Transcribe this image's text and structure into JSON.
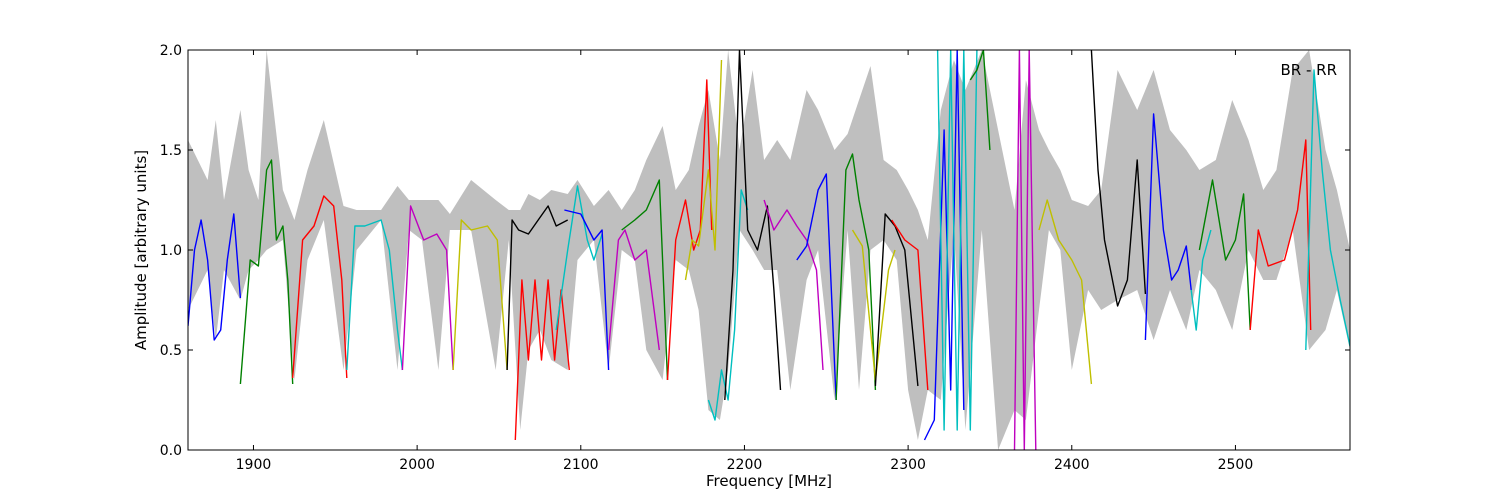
{
  "chart_data": {
    "type": "line",
    "title": "",
    "xlabel": "Frequency [MHz]",
    "ylabel": "Amplitude [arbitrary units]",
    "xlim": [
      1860,
      2570
    ],
    "ylim": [
      0.0,
      2.0
    ],
    "xticks": [
      1900,
      2000,
      2100,
      2200,
      2300,
      2400,
      2500
    ],
    "xtick_labels": [
      "1900",
      "2000",
      "2100",
      "2200",
      "2300",
      "2400",
      "2500"
    ],
    "yticks": [
      0.0,
      0.5,
      1.0,
      1.5,
      2.0
    ],
    "ytick_labels": [
      "0.0",
      "0.5",
      "1.0",
      "1.5",
      "2.0"
    ],
    "grid": false,
    "annotation": "BR - RR",
    "envelope_color": "#bfbfbf",
    "envelope": {
      "x": [
        1860,
        1872,
        1877,
        1882,
        1892,
        1897,
        1903,
        1908,
        1918,
        1925,
        1933,
        1943,
        1955,
        1963,
        1978,
        1988,
        1995,
        2003,
        2013,
        2020,
        2033,
        2048,
        2056,
        2063,
        2068,
        2075,
        2082,
        2092,
        2098,
        2108,
        2117,
        2125,
        2133,
        2140,
        2150,
        2158,
        2166,
        2172,
        2178,
        2185,
        2190,
        2197,
        2205,
        2212,
        2220,
        2228,
        2238,
        2245,
        2255,
        2263,
        2270,
        2277,
        2285,
        2293,
        2300,
        2306,
        2312,
        2320,
        2328,
        2335,
        2345,
        2355,
        2365,
        2372,
        2380,
        2386,
        2393,
        2400,
        2410,
        2418,
        2428,
        2440,
        2450,
        2460,
        2470,
        2478,
        2488,
        2498,
        2508,
        2517,
        2525,
        2535,
        2545,
        2555,
        2562,
        2570
      ],
      "upper": [
        1.55,
        1.35,
        1.65,
        1.25,
        1.7,
        1.4,
        1.25,
        2.0,
        1.3,
        1.15,
        1.4,
        1.65,
        1.22,
        1.2,
        1.2,
        1.32,
        1.25,
        1.25,
        1.25,
        1.18,
        1.35,
        1.25,
        1.2,
        1.2,
        1.28,
        1.25,
        1.3,
        1.28,
        1.35,
        1.22,
        1.3,
        1.2,
        1.3,
        1.45,
        1.62,
        1.3,
        1.4,
        1.62,
        1.8,
        1.45,
        2.0,
        1.5,
        1.9,
        1.45,
        1.55,
        1.45,
        1.8,
        1.7,
        1.5,
        1.58,
        1.75,
        1.92,
        1.45,
        1.4,
        1.3,
        1.2,
        1.05,
        1.7,
        1.95,
        1.8,
        2.0,
        1.6,
        1.2,
        1.85,
        1.6,
        1.5,
        1.4,
        1.25,
        1.22,
        1.3,
        1.9,
        1.7,
        1.9,
        1.6,
        1.5,
        1.4,
        1.45,
        1.75,
        1.55,
        1.3,
        1.4,
        1.9,
        2.0,
        1.5,
        1.3,
        1.0
      ],
      "lower": [
        0.7,
        0.9,
        0.55,
        0.9,
        0.75,
        0.9,
        0.95,
        1.0,
        1.05,
        0.35,
        0.95,
        1.15,
        0.4,
        1.0,
        1.15,
        0.4,
        1.1,
        1.05,
        0.4,
        1.1,
        1.1,
        0.4,
        1.05,
        0.1,
        0.5,
        0.6,
        0.45,
        0.4,
        0.95,
        1.05,
        0.4,
        1.0,
        0.95,
        0.5,
        0.35,
        0.95,
        0.9,
        0.7,
        0.2,
        0.15,
        0.4,
        1.1,
        1.0,
        0.9,
        0.9,
        0.3,
        0.85,
        1.0,
        0.25,
        1.1,
        0.3,
        1.0,
        1.05,
        0.95,
        0.3,
        0.05,
        0.3,
        0.25,
        1.1,
        0.1,
        1.1,
        0.0,
        0.2,
        0.15,
        0.7,
        1.1,
        1.0,
        0.4,
        0.8,
        0.7,
        0.75,
        0.8,
        0.55,
        0.8,
        0.6,
        0.9,
        0.8,
        0.6,
        1.0,
        0.85,
        0.85,
        1.1,
        0.5,
        0.6,
        0.8,
        0.5
      ]
    },
    "series": [
      {
        "color": "#0000ff",
        "x": [
          1860,
          1864,
          1868,
          1872,
          1876,
          1880,
          1884,
          1888,
          1892
        ],
        "y": [
          0.62,
          1.0,
          1.15,
          0.95,
          0.55,
          0.6,
          0.95,
          1.18,
          0.76
        ]
      },
      {
        "color": "#008000",
        "x": [
          1892,
          1898,
          1903,
          1908,
          1911,
          1914,
          1918,
          1921,
          1924
        ],
        "y": [
          0.33,
          0.95,
          0.92,
          1.4,
          1.45,
          1.05,
          1.12,
          0.85,
          0.33
        ]
      },
      {
        "color": "#ff0000",
        "x": [
          1924,
          1930,
          1937,
          1943,
          1949,
          1954,
          1957
        ],
        "y": [
          0.36,
          1.05,
          1.12,
          1.27,
          1.22,
          0.85,
          0.36
        ]
      },
      {
        "color": "#00bfbf",
        "x": [
          1957,
          1962,
          1968,
          1978,
          1983,
          1988,
          1991
        ],
        "y": [
          0.4,
          1.12,
          1.12,
          1.15,
          1.0,
          0.6,
          0.4
        ]
      },
      {
        "color": "#bf00bf",
        "x": [
          1991,
          1996,
          2004,
          2012,
          2018,
          2022
        ],
        "y": [
          0.4,
          1.22,
          1.05,
          1.08,
          1.0,
          0.4
        ]
      },
      {
        "color": "#bfbf00",
        "x": [
          2022,
          2027,
          2033,
          2043,
          2049,
          2055
        ],
        "y": [
          0.4,
          1.15,
          1.1,
          1.12,
          1.05,
          0.4
        ]
      },
      {
        "color": "#000000",
        "x": [
          2055,
          2058,
          2062,
          2068,
          2074,
          2080,
          2085,
          2092
        ],
        "y": [
          0.4,
          1.15,
          1.1,
          1.08,
          1.15,
          1.22,
          1.12,
          1.15
        ]
      },
      {
        "color": "#ff0000",
        "x": [
          2060,
          2064,
          2068,
          2072,
          2076,
          2080,
          2084,
          2088,
          2093
        ],
        "y": [
          0.05,
          0.85,
          0.45,
          0.85,
          0.45,
          0.85,
          0.45,
          0.8,
          0.4
        ]
      },
      {
        "color": "#00bfbf",
        "x": [
          2085,
          2092,
          2098,
          2104,
          2108,
          2113
        ],
        "y": [
          0.6,
          1.0,
          1.32,
          1.05,
          0.95,
          1.08
        ]
      },
      {
        "color": "#0000ff",
        "x": [
          2090,
          2100,
          2108,
          2113,
          2117
        ],
        "y": [
          1.2,
          1.18,
          1.05,
          1.1,
          0.4
        ]
      },
      {
        "color": "#bf00bf",
        "x": [
          2117,
          2123,
          2127,
          2133,
          2140,
          2148
        ],
        "y": [
          0.5,
          1.05,
          1.1,
          0.95,
          1.0,
          0.5
        ]
      },
      {
        "color": "#008000",
        "x": [
          2125,
          2133,
          2140,
          2148,
          2153
        ],
        "y": [
          1.1,
          1.15,
          1.2,
          1.35,
          0.35
        ]
      },
      {
        "color": "#ff0000",
        "x": [
          2153,
          2158,
          2164,
          2169,
          2173,
          2177,
          2180
        ],
        "y": [
          0.35,
          1.05,
          1.25,
          1.0,
          1.1,
          1.85,
          1.1
        ]
      },
      {
        "color": "#bfbf00",
        "x": [
          2164,
          2168,
          2172,
          2178,
          2182,
          2186
        ],
        "y": [
          0.85,
          1.05,
          1.02,
          1.4,
          1.0,
          1.95
        ]
      },
      {
        "color": "#00bfbf",
        "x": [
          2178,
          2182,
          2186,
          2190,
          2194,
          2198,
          2202
        ],
        "y": [
          0.25,
          0.15,
          0.4,
          0.25,
          0.6,
          1.3,
          1.2
        ]
      },
      {
        "color": "#000000",
        "x": [
          2188,
          2193,
          2197,
          2202,
          2208,
          2214,
          2218,
          2222
        ],
        "y": [
          0.25,
          0.9,
          2.0,
          1.1,
          1.0,
          1.22,
          0.8,
          0.3
        ]
      },
      {
        "color": "#bf00bf",
        "x": [
          2212,
          2218,
          2226,
          2232,
          2238,
          2244,
          2248
        ],
        "y": [
          1.25,
          1.1,
          1.2,
          1.12,
          1.05,
          0.9,
          0.4
        ]
      },
      {
        "color": "#0000ff",
        "x": [
          2232,
          2238,
          2245,
          2250,
          2256
        ],
        "y": [
          0.95,
          1.02,
          1.3,
          1.38,
          0.25
        ]
      },
      {
        "color": "#008000",
        "x": [
          2256,
          2262,
          2266,
          2270,
          2276,
          2280
        ],
        "y": [
          0.25,
          1.4,
          1.48,
          1.25,
          1.0,
          0.3
        ]
      },
      {
        "color": "#bfbf00",
        "x": [
          2266,
          2272,
          2280,
          2288,
          2292
        ],
        "y": [
          1.1,
          1.02,
          0.35,
          0.9,
          1.0
        ]
      },
      {
        "color": "#000000",
        "x": [
          2280,
          2286,
          2292,
          2298,
          2306
        ],
        "y": [
          0.32,
          1.18,
          1.12,
          1.0,
          0.32
        ]
      },
      {
        "color": "#ff0000",
        "x": [
          2290,
          2298,
          2306,
          2312
        ],
        "y": [
          1.15,
          1.05,
          1.0,
          0.3
        ]
      },
      {
        "color": "#0000ff",
        "x": [
          2310,
          2316,
          2322,
          2326,
          2330,
          2334
        ],
        "y": [
          0.05,
          0.15,
          1.6,
          0.3,
          2.0,
          0.2
        ]
      },
      {
        "color": "#00bfbf",
        "x": [
          2318,
          2322,
          2326,
          2330,
          2334,
          2338,
          2342
        ],
        "y": [
          2.0,
          0.1,
          2.0,
          0.1,
          2.0,
          0.1,
          2.0
        ]
      },
      {
        "color": "#008000",
        "x": [
          2338,
          2342,
          2346,
          2350
        ],
        "y": [
          1.85,
          1.9,
          2.0,
          1.5
        ]
      },
      {
        "color": "#bf00bf",
        "x": [
          2365,
          2368,
          2371,
          2374,
          2378
        ],
        "y": [
          0.0,
          2.0,
          0.0,
          2.0,
          0.0
        ]
      },
      {
        "color": "#bfbf00",
        "x": [
          2380,
          2385,
          2392,
          2400,
          2406,
          2412
        ],
        "y": [
          1.1,
          1.25,
          1.05,
          0.95,
          0.85,
          0.33
        ]
      },
      {
        "color": "#000000",
        "x": [
          2412,
          2416,
          2420,
          2428,
          2434,
          2440,
          2445
        ],
        "y": [
          2.0,
          1.4,
          1.05,
          0.72,
          0.85,
          1.45,
          0.78
        ]
      },
      {
        "color": "#0000ff",
        "x": [
          2445,
          2450,
          2456,
          2461,
          2465,
          2470,
          2473
        ],
        "y": [
          0.55,
          1.68,
          1.1,
          0.85,
          0.9,
          1.02,
          0.8
        ]
      },
      {
        "color": "#00bfbf",
        "x": [
          2473,
          2476,
          2480,
          2485
        ],
        "y": [
          0.8,
          0.6,
          0.95,
          1.1
        ]
      },
      {
        "color": "#008000",
        "x": [
          2478,
          2486,
          2494,
          2500,
          2505,
          2509
        ],
        "y": [
          1.0,
          1.35,
          0.95,
          1.05,
          1.28,
          0.6
        ]
      },
      {
        "color": "#ff0000",
        "x": [
          2509,
          2514,
          2520,
          2530,
          2538,
          2543,
          2546
        ],
        "y": [
          0.6,
          1.1,
          0.92,
          0.95,
          1.2,
          1.55,
          0.6
        ]
      },
      {
        "color": "#00bfbf",
        "x": [
          2543,
          2548,
          2553,
          2558,
          2564,
          2570
        ],
        "y": [
          0.5,
          1.9,
          1.4,
          1.0,
          0.75,
          0.52
        ]
      }
    ]
  }
}
